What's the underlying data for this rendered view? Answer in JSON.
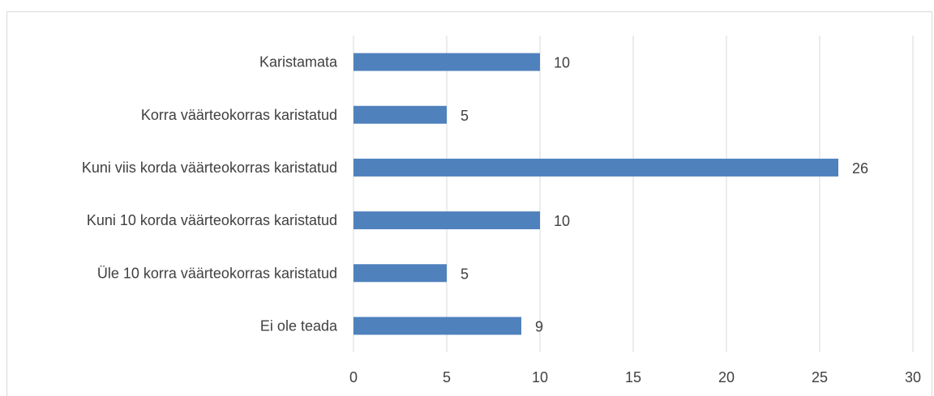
{
  "chart_data": {
    "type": "bar",
    "orientation": "horizontal",
    "categories": [
      "Karistamata",
      "Korra väärteokorras karistatud",
      "Kuni viis korda väärteokorras karistatud",
      "Kuni 10 korda väärteokorras karistatud",
      "Üle 10 korra väärteokorras karistatud",
      "Ei ole teada"
    ],
    "values": [
      10,
      5,
      26,
      10,
      5,
      9
    ],
    "xlim": [
      0,
      30
    ],
    "xticks": [
      0,
      5,
      10,
      15,
      20,
      25,
      30
    ],
    "grid": true,
    "data_labels": true,
    "bar_color": "#4f81bd",
    "grid_color": "#d9d9d9",
    "text_color": "#404040"
  }
}
